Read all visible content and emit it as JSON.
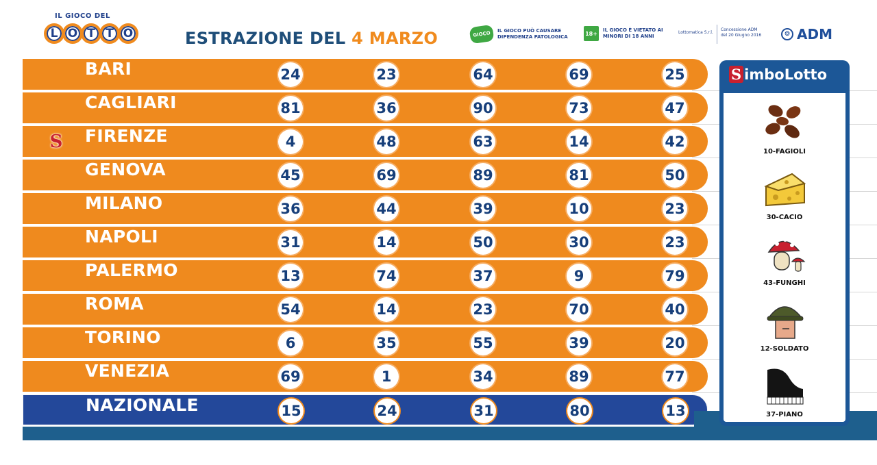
{
  "header": {
    "logo_small": "IL GIOCO DEL",
    "logo_letters": [
      "L",
      "O",
      "T",
      "T",
      "O"
    ],
    "title_prefix": "ESTRAZIONE DEL",
    "title_date": "4 MARZO",
    "warning_icon": "gioco-responsabile-icon",
    "warning_text": "IL GIOCO PUÒ CAUSARE DIPENDENZA PATOLOGICA",
    "age_badge": "18+",
    "age_text": "IL GIOCO È VIETATO AI MINORI DI 18 ANNI",
    "meta_left": "Lottomatica S.r.l.",
    "meta_right": "Concessione ADM del 20 Giugno 2016",
    "adm_label": "ADM"
  },
  "draws": [
    {
      "city": "BARI",
      "numbers": [
        "24",
        "23",
        "64",
        "69",
        "25"
      ],
      "simbolotto": false
    },
    {
      "city": "CAGLIARI",
      "numbers": [
        "81",
        "36",
        "90",
        "73",
        "47"
      ],
      "simbolotto": false
    },
    {
      "city": "FIRENZE",
      "numbers": [
        "4",
        "48",
        "63",
        "14",
        "42"
      ],
      "simbolotto": true
    },
    {
      "city": "GENOVA",
      "numbers": [
        "45",
        "69",
        "89",
        "81",
        "50"
      ],
      "simbolotto": false
    },
    {
      "city": "MILANO",
      "numbers": [
        "36",
        "44",
        "39",
        "10",
        "23"
      ],
      "simbolotto": false
    },
    {
      "city": "NAPOLI",
      "numbers": [
        "31",
        "14",
        "50",
        "30",
        "23"
      ],
      "simbolotto": false
    },
    {
      "city": "PALERMO",
      "numbers": [
        "13",
        "74",
        "37",
        "9",
        "79"
      ],
      "simbolotto": false
    },
    {
      "city": "ROMA",
      "numbers": [
        "54",
        "14",
        "23",
        "70",
        "40"
      ],
      "simbolotto": false
    },
    {
      "city": "TORINO",
      "numbers": [
        "6",
        "35",
        "55",
        "39",
        "20"
      ],
      "simbolotto": false
    },
    {
      "city": "VENEZIA",
      "numbers": [
        "69",
        "1",
        "34",
        "89",
        "77"
      ],
      "simbolotto": false
    },
    {
      "city": "NAZIONALE",
      "numbers": [
        "15",
        "24",
        "31",
        "80",
        "13"
      ],
      "simbolotto": false
    }
  ],
  "simbolotto": {
    "title_s": "S",
    "title_rest": "imboLotto",
    "marker_letter": "S",
    "symbols": [
      {
        "label": "10-FAGIOLI",
        "icon": "beans-icon"
      },
      {
        "label": "30-CACIO",
        "icon": "cheese-icon"
      },
      {
        "label": "43-FUNGHI",
        "icon": "mushrooms-icon"
      },
      {
        "label": "12-SOLDATO",
        "icon": "soldier-icon"
      },
      {
        "label": "37-PIANO",
        "icon": "piano-icon"
      }
    ]
  },
  "colors": {
    "orange": "#ef8a1e",
    "navy": "#23489a",
    "panel_blue": "#1c5797",
    "title_blue": "#1f4e79",
    "number_blue": "#173f7a"
  }
}
